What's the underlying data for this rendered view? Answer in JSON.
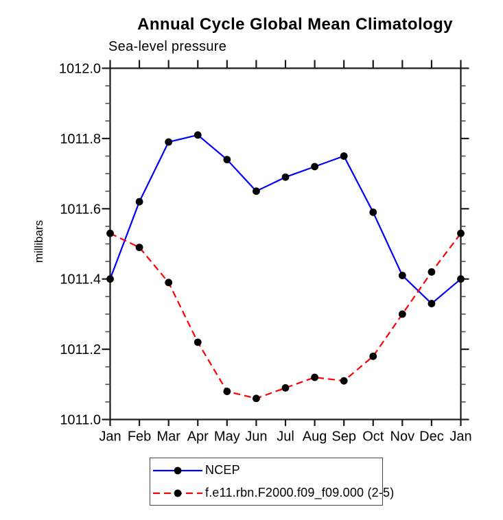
{
  "chart_data": {
    "type": "line",
    "title": "Annual Cycle Global Mean Climatology",
    "subtitle": "Sea-level pressure",
    "ylabel": "millibars",
    "xlabel": "",
    "categories": [
      "Jan",
      "Feb",
      "Mar",
      "Apr",
      "May",
      "Jun",
      "Jul",
      "Aug",
      "Sep",
      "Oct",
      "Nov",
      "Dec",
      "Jan"
    ],
    "ylim": [
      1011.0,
      1012.0
    ],
    "ytick_step": 0.2,
    "yminor_step": 0.05,
    "y_tick_labels": [
      "1012.0",
      "1011.8",
      "1011.6",
      "1011.4",
      "1011.2",
      "1011.0"
    ],
    "grid": false,
    "legend_position": "bottom-left",
    "series": [
      {
        "name": "NCEP",
        "color": "#0000ff",
        "line_style": "solid",
        "marker": "filled-circle",
        "marker_color": "#000000",
        "values": [
          1011.4,
          1011.62,
          1011.79,
          1011.81,
          1011.74,
          1011.65,
          1011.69,
          1011.72,
          1011.75,
          1011.59,
          1011.41,
          1011.33,
          1011.4
        ]
      },
      {
        "name": "f.e11.rbn.F2000.f09_f09.000 (2-5)",
        "color": "#ff0000",
        "line_style": "dashed",
        "marker": "filled-circle",
        "marker_color": "#000000",
        "values": [
          1011.53,
          1011.49,
          1011.39,
          1011.22,
          1011.08,
          1011.06,
          1011.09,
          1011.12,
          1011.11,
          1011.18,
          1011.3,
          1011.42,
          1011.53
        ]
      }
    ]
  }
}
